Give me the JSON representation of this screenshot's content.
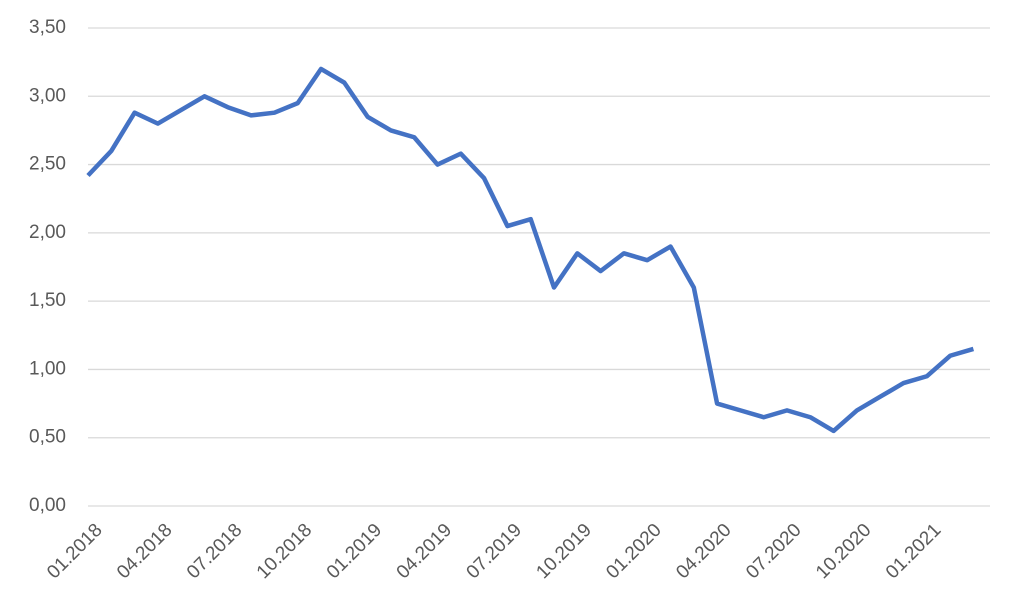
{
  "chart_data": {
    "type": "line",
    "categories": [
      "01.2018",
      null,
      null,
      "04.2018",
      null,
      null,
      "07.2018",
      null,
      null,
      "10.2018",
      null,
      null,
      "01.2019",
      null,
      null,
      "04.2019",
      null,
      null,
      "07.2019",
      null,
      null,
      "10.2019",
      null,
      null,
      "01.2020",
      null,
      null,
      "04.2020",
      null,
      null,
      "07.2020",
      null,
      null,
      "10.2020",
      null,
      null,
      "01.2021",
      null,
      null
    ],
    "series": [
      {
        "name": null,
        "color": "#4472c4",
        "values": [
          2.42,
          2.6,
          2.88,
          2.8,
          2.9,
          3.0,
          2.92,
          2.86,
          2.88,
          2.95,
          3.2,
          3.1,
          2.85,
          2.75,
          2.7,
          2.5,
          2.58,
          2.4,
          2.05,
          2.1,
          1.6,
          1.85,
          1.72,
          1.85,
          1.8,
          1.9,
          1.6,
          0.75,
          0.7,
          0.65,
          0.7,
          0.65,
          0.55,
          0.7,
          0.8,
          0.9,
          0.95,
          1.1,
          1.15
        ]
      }
    ],
    "ylim": [
      0,
      3.5
    ],
    "yticks": [
      {
        "value": 0,
        "label": "0,00"
      },
      {
        "value": 0.5,
        "label": "0,50"
      },
      {
        "value": 1,
        "label": "1,00"
      },
      {
        "value": 1.5,
        "label": "1,50"
      },
      {
        "value": 2,
        "label": "2,00"
      },
      {
        "value": 2.5,
        "label": "2,50"
      },
      {
        "value": 3,
        "label": "3,00"
      },
      {
        "value": 3.5,
        "label": "3,50"
      }
    ],
    "grid": true
  }
}
